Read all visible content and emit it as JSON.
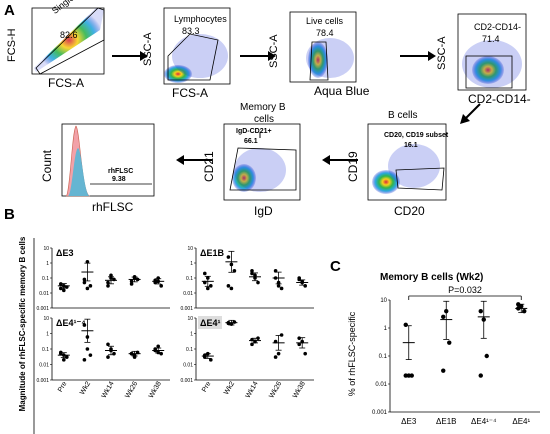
{
  "panel_labels": {
    "a": "A",
    "b": "B",
    "c": "C"
  },
  "gating": {
    "singlets": {
      "label": "Singlets",
      "value": "82.6",
      "xlabel": "FCS-A",
      "ylabel": "FCS-H"
    },
    "lymphocytes": {
      "label": "Lymphocytes",
      "value": "83.3",
      "xlabel": "FCS-A",
      "ylabel": "SSC-A"
    },
    "live": {
      "label": "Live cells",
      "value": "78.4",
      "xlabel": "Aqua Blue",
      "ylabel": "SSC-A"
    },
    "cd2": {
      "label": "CD2-CD14-",
      "value": "71.4",
      "xlabel": "CD2-CD14-",
      "ylabel": "SSC-A"
    },
    "bcells": {
      "title": "B cells",
      "label": "CD20, CD19 subset",
      "value": "16.1",
      "xlabel": "CD20",
      "ylabel": "CD19"
    },
    "memb": {
      "title_line1": "Memory B",
      "title_line2": "cells",
      "label": "IgD-CD21+",
      "value": "66.1",
      "xlabel": "IgD",
      "ylabel": "CD21"
    },
    "hist": {
      "label": "rhFLSC",
      "value": "9.38",
      "xlabel": "rhFLSC",
      "ylabel": "Count"
    },
    "colors": {
      "hot": "#d7263d",
      "warm": "#f7d21b",
      "mid": "#31b44b",
      "cool": "#29a8e0",
      "cold": "#2b3fd6",
      "hist_red": "#f2a1a8",
      "hist_blue": "#55b7d6"
    }
  },
  "panel_b": {
    "ylabel": "Magnitude of rhFLSC-specific memory B cells",
    "timepoints": [
      "Pre",
      "Wk2",
      "Wk14",
      "Wk26",
      "Wk38"
    ],
    "yticks": [
      "10",
      "1",
      "0.1",
      "0.01",
      "0.001"
    ]
  },
  "chart_data": [
    {
      "type": "scatter",
      "title": "ΔE3",
      "categories": [
        "Pre",
        "Wk2",
        "Wk14",
        "Wk26",
        "Wk38"
      ],
      "yscale": "log",
      "ylim": [
        0.001,
        10
      ],
      "points": [
        [
          0.02,
          0.03,
          0.025,
          0.04,
          0.015
        ],
        [
          0.05,
          1.2,
          0.03,
          0.08,
          0.02
        ],
        [
          0.05,
          0.15,
          0.08,
          0.03,
          0.1
        ],
        [
          0.04,
          0.12,
          0.08,
          0.06,
          0.1
        ],
        [
          0.05,
          0.1,
          0.03,
          0.07,
          0.06
        ]
      ],
      "means": [
        0.03,
        0.25,
        0.07,
        0.08,
        0.06
      ]
    },
    {
      "type": "scatter",
      "title": "ΔE1B",
      "categories": [
        "Pre",
        "Wk2",
        "Wk14",
        "Wk26",
        "Wk38"
      ],
      "yscale": "log",
      "ylim": [
        0.001,
        10
      ],
      "points": [
        [
          0.05,
          0.1,
          0.03,
          0.2,
          0.02
        ],
        [
          2.5,
          0.8,
          0.3,
          0.03,
          0.02
        ],
        [
          0.2,
          0.1,
          0.05,
          0.3,
          0.15
        ],
        [
          0.1,
          0.03,
          0.02,
          0.3,
          0.05
        ],
        [
          0.08,
          0.05,
          0.03,
          0.1,
          0.06
        ]
      ],
      "means": [
        0.06,
        1.2,
        0.12,
        0.1,
        0.05
      ]
    },
    {
      "type": "scatter",
      "title": "ΔE4¹⁻⁴",
      "categories": [
        "Pre",
        "Wk2",
        "Wk14",
        "Wk26",
        "Wk38"
      ],
      "yscale": "log",
      "ylim": [
        0.001,
        10
      ],
      "points": [
        [
          0.05,
          0.02,
          0.03,
          0.06,
          0.04
        ],
        [
          3.5,
          0.6,
          0.04,
          0.02,
          0.1
        ],
        [
          0.2,
          0.08,
          0.05,
          0.03,
          0.1
        ],
        [
          0.05,
          0.04,
          0.06,
          0.05,
          0.03
        ],
        [
          0.1,
          0.15,
          0.05,
          0.08,
          0.06
        ]
      ],
      "means": [
        0.04,
        1.5,
        0.08,
        0.05,
        0.08
      ]
    },
    {
      "type": "scatter",
      "title": "ΔE4¹",
      "categories": [
        "Pre",
        "Wk2",
        "Wk14",
        "Wk26",
        "Wk38"
      ],
      "yscale": "log",
      "ylim": [
        0.001,
        10
      ],
      "points": [
        [
          0.03,
          0.05,
          0.02,
          0.04
        ],
        [
          5,
          4,
          5.5,
          4.5
        ],
        [
          0.4,
          0.3,
          0.5,
          0.2
        ],
        [
          0.3,
          0.05,
          0.8,
          0.03
        ],
        [
          0.2,
          0.3,
          0.05,
          0.5
        ]
      ],
      "means": [
        0.035,
        5,
        0.35,
        0.25,
        0.25
      ]
    },
    {
      "type": "scatter",
      "title": "Memory B cells (Wk2)",
      "ylabel": "% of rhFLSC-specific",
      "categories": [
        "ΔE3",
        "ΔE1B",
        "ΔE4¹⁻⁴",
        "ΔE4¹"
      ],
      "yscale": "log",
      "ylim": [
        0.001,
        10
      ],
      "points": [
        [
          1.3,
          0.02,
          0.02,
          0.02
        ],
        [
          2.5,
          4,
          0.3,
          0.03
        ],
        [
          4,
          2,
          0.1,
          0.02
        ],
        [
          5,
          6,
          4,
          7
        ]
      ],
      "means": [
        0.3,
        2,
        2.5,
        5
      ],
      "annotation": "P=0.032"
    }
  ],
  "panel_c": {
    "title": "Memory B cells (Wk2)",
    "ylabel": "% of rhFLSC-specific",
    "pval": "P=0.032",
    "yticks": [
      "10",
      "1",
      "0.1",
      "0.01",
      "0.001"
    ],
    "xticks": [
      "ΔE3",
      "ΔE1B",
      "ΔE4¹⁻⁴",
      "ΔE4¹"
    ]
  }
}
